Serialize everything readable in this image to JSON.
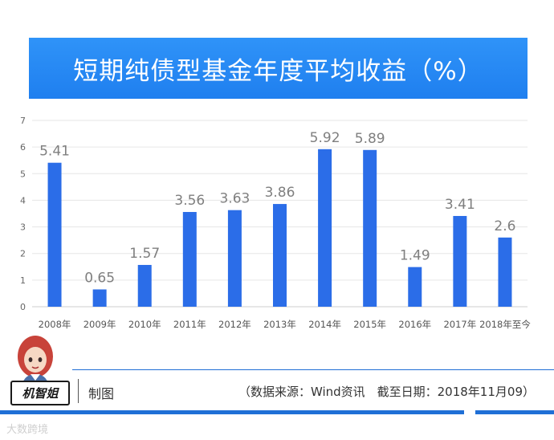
{
  "header": {
    "title": "短期纯债型基金年度平均收益（%）"
  },
  "chart_data": {
    "type": "bar",
    "title": "短期纯债型基金年度平均收益（%）",
    "categories": [
      "2008年",
      "2009年",
      "2010年",
      "2011年",
      "2012年",
      "2013年",
      "2014年",
      "2015年",
      "2016年",
      "2017年",
      "2018年至今"
    ],
    "values": [
      5.41,
      0.65,
      1.57,
      3.56,
      3.63,
      3.86,
      5.92,
      5.89,
      1.49,
      3.41,
      2.6
    ],
    "value_labels": [
      "5.41",
      "0.65",
      "1.57",
      "3.56",
      "3.63",
      "3.86",
      "5.92",
      "5.89",
      "1.49",
      "3.41",
      "2.6"
    ],
    "yticks": [
      "0",
      "1",
      "2",
      "3",
      "4",
      "5",
      "6",
      "7"
    ],
    "ylim": [
      0,
      7
    ],
    "xlabel": "",
    "ylabel": "",
    "grid": true,
    "bar_color": "#2b6de8"
  },
  "footer": {
    "brand": "机智姐",
    "made_label": "制图",
    "source": "（数据来源：Wind资讯　截至日期：2018年11月09）",
    "watermark": "大数跨境"
  },
  "colors": {
    "accent": "#1f7fef",
    "bar": "#2b6de8",
    "label": "#7f7f7f",
    "grid": "#e6e6e6"
  }
}
